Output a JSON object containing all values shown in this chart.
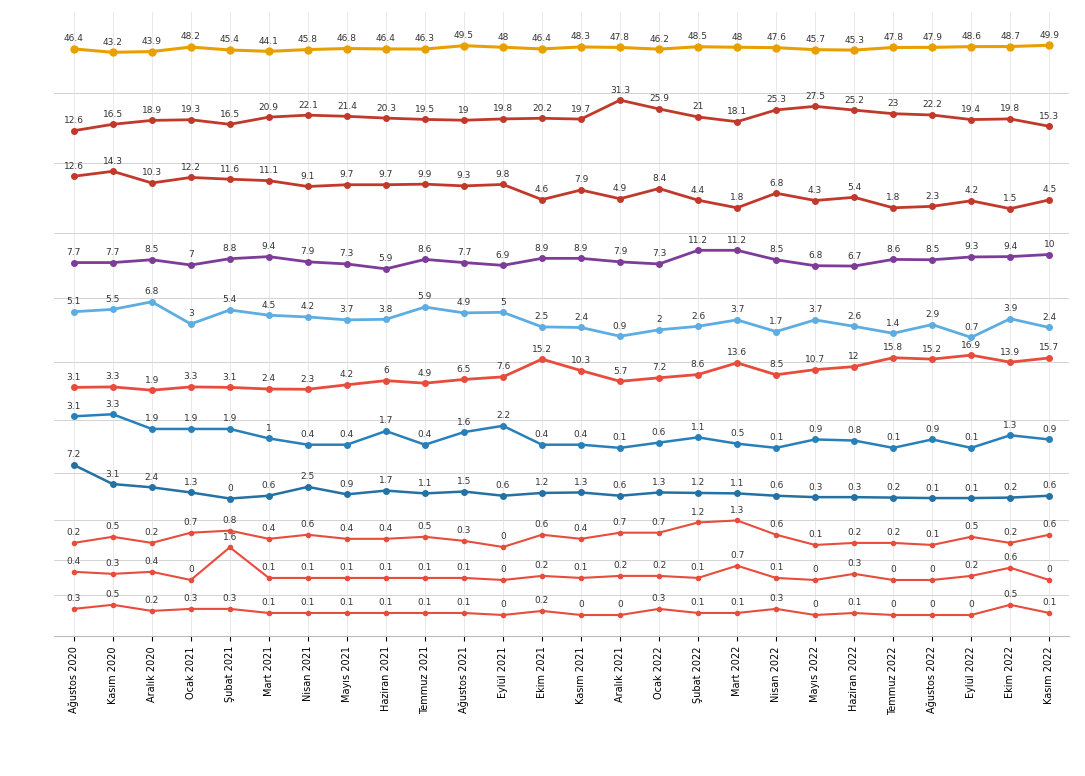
{
  "x_labels": [
    "Ağustos 2020",
    "Kasım 2020",
    "Aralık 2020",
    "Ocak 2021",
    "Şubat 2021",
    "Mart 2021",
    "Nisan 2021",
    "Mayıs 2021",
    "Haziran 2021",
    "Temmuz 2021",
    "Ağustos 2021",
    "Eylül 2021",
    "Ekim 2021",
    "Kasım 2021",
    "Aralık 2021",
    "Ocak 2022",
    "Şubat 2022",
    "Mart 2022",
    "Nisan 2022",
    "Mayıs 2022",
    "Haziran 2022",
    "Temmuz 2022",
    "Ağustos 2022",
    "Eylül 2022",
    "Ekim 2022",
    "Kasım 2022"
  ],
  "series": [
    {
      "color": "#E8A000",
      "linewidth": 2.2,
      "markersize": 5,
      "values": [
        46.4,
        43.2,
        43.9,
        48.2,
        45.4,
        44.1,
        45.8,
        46.8,
        46.4,
        46.3,
        49.5,
        48.0,
        46.4,
        48.3,
        47.8,
        46.2,
        48.5,
        48.0,
        47.6,
        45.7,
        45.3,
        47.8,
        47.9,
        48.6,
        48.7,
        49.9
      ]
    },
    {
      "color": "#C0392B",
      "linewidth": 2.0,
      "markersize": 4,
      "values": [
        12.6,
        16.5,
        18.9,
        19.3,
        16.5,
        20.9,
        22.1,
        21.4,
        20.3,
        19.5,
        19.0,
        19.8,
        20.2,
        19.7,
        31.3,
        25.9,
        21.0,
        18.1,
        25.3,
        27.5,
        25.2,
        23.0,
        22.2,
        19.4,
        19.8,
        15.3
      ]
    },
    {
      "color": "#C0392B",
      "linewidth": 2.0,
      "markersize": 4,
      "values": [
        12.6,
        14.3,
        10.3,
        12.2,
        11.6,
        11.1,
        9.1,
        9.7,
        9.7,
        9.9,
        9.3,
        9.8,
        4.6,
        7.9,
        4.9,
        8.4,
        4.4,
        1.8,
        6.8,
        4.3,
        5.4,
        1.8,
        2.3,
        4.2,
        1.5,
        4.5
      ]
    },
    {
      "color": "#7D3C98",
      "linewidth": 2.0,
      "markersize": 4,
      "values": [
        7.7,
        7.7,
        8.5,
        7.0,
        8.8,
        9.4,
        7.9,
        7.3,
        5.9,
        8.6,
        7.7,
        6.9,
        8.9,
        8.9,
        7.9,
        7.3,
        11.2,
        11.2,
        8.5,
        6.8,
        6.7,
        8.6,
        8.5,
        9.3,
        9.4,
        10.0
      ]
    },
    {
      "color": "#5DADE2",
      "linewidth": 2.0,
      "markersize": 4,
      "values": [
        5.1,
        5.5,
        6.8,
        3.0,
        5.4,
        4.5,
        4.2,
        3.7,
        3.8,
        5.9,
        4.9,
        5.0,
        2.5,
        2.4,
        0.9,
        2.0,
        2.6,
        3.7,
        1.7,
        3.7,
        2.6,
        1.4,
        2.9,
        0.7,
        3.9,
        2.4
      ]
    },
    {
      "color": "#E74C3C",
      "linewidth": 2.0,
      "markersize": 4,
      "values": [
        3.1,
        3.3,
        1.9,
        3.3,
        3.1,
        2.4,
        2.3,
        4.2,
        6.0,
        4.9,
        6.5,
        7.6,
        15.2,
        10.3,
        5.7,
        7.2,
        8.6,
        13.6,
        8.5,
        10.7,
        12.0,
        15.8,
        15.2,
        16.9,
        13.9,
        15.7
      ]
    },
    {
      "color": "#2980B9",
      "linewidth": 1.8,
      "markersize": 4,
      "values": [
        3.1,
        3.3,
        1.9,
        1.9,
        1.9,
        1.0,
        0.4,
        0.4,
        1.7,
        0.4,
        1.6,
        2.2,
        0.4,
        0.4,
        0.1,
        0.6,
        1.1,
        0.5,
        0.1,
        0.9,
        0.8,
        0.1,
        0.9,
        0.1,
        1.3,
        0.9
      ]
    },
    {
      "color": "#2471A3",
      "linewidth": 1.8,
      "markersize": 4,
      "values": [
        7.2,
        3.1,
        2.4,
        1.3,
        0.0,
        0.6,
        2.5,
        0.9,
        1.7,
        1.1,
        1.5,
        0.6,
        1.2,
        1.3,
        0.6,
        1.3,
        1.2,
        1.1,
        0.6,
        0.3,
        0.3,
        0.2,
        0.1,
        0.1,
        0.2,
        0.6
      ]
    },
    {
      "color": "#E74C3C",
      "linewidth": 1.5,
      "markersize": 3,
      "values": [
        0.2,
        0.5,
        0.2,
        0.7,
        0.8,
        0.4,
        0.6,
        0.4,
        0.4,
        0.5,
        0.3,
        0.0,
        0.6,
        0.4,
        0.7,
        0.7,
        1.2,
        1.3,
        0.6,
        0.1,
        0.2,
        0.2,
        0.1,
        0.5,
        0.2,
        0.6
      ]
    },
    {
      "color": "#E74C3C",
      "linewidth": 1.5,
      "markersize": 3,
      "values": [
        0.4,
        0.3,
        0.4,
        0.0,
        1.6,
        0.1,
        0.1,
        0.1,
        0.1,
        0.1,
        0.1,
        0.0,
        0.2,
        0.1,
        0.2,
        0.2,
        0.1,
        0.7,
        0.1,
        0.0,
        0.3,
        0.0,
        0.0,
        0.2,
        0.6,
        0.0
      ]
    },
    {
      "color": "#E74C3C",
      "linewidth": 1.5,
      "markersize": 3,
      "values": [
        0.3,
        0.5,
        0.2,
        0.3,
        0.3,
        0.1,
        0.1,
        0.1,
        0.1,
        0.1,
        0.1,
        0.0,
        0.2,
        0.0,
        0.0,
        0.3,
        0.1,
        0.1,
        0.3,
        0.0,
        0.1,
        0.0,
        0.0,
        0.0,
        0.5,
        0.1
      ]
    }
  ],
  "band_centers": [
    100,
    87,
    75,
    63,
    53,
    42,
    33,
    24,
    16,
    10,
    4
  ],
  "band_scales": [
    0.18,
    0.28,
    0.5,
    0.6,
    1.0,
    0.4,
    1.8,
    0.8,
    3.5,
    3.5,
    3.5
  ],
  "band_refs": [
    43.0,
    14.0,
    5.0,
    6.0,
    2.5,
    1.5,
    0.5,
    0.5,
    0.2,
    0.1,
    0.1
  ],
  "background_color": "#FFFFFF",
  "grid_color": "#E0E0E0",
  "font_size_labels": 6.5,
  "font_size_xtick": 7.0,
  "separator_positions": [
    93,
    81,
    69,
    58,
    47,
    37,
    28,
    20,
    13,
    7
  ]
}
